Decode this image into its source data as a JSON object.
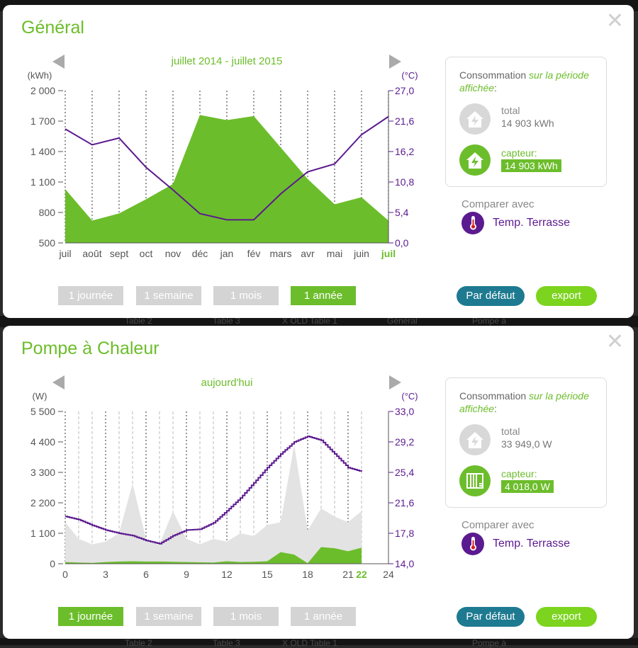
{
  "background_tabs": [
    "Table 2",
    "Table 3",
    "X OLD Table 1",
    "Général",
    "Pompe à"
  ],
  "colors": {
    "green": "#6cbd2b",
    "purple": "#5b1a8f",
    "grey_area": "#e3e3e3",
    "teal": "#1e7a90",
    "lime": "#7cd41e"
  },
  "range_buttons": [
    "1 journée",
    "1 semaine",
    "1 mois",
    "1 année"
  ],
  "panels": [
    {
      "title": "Général",
      "period": "juillet 2014 - juillet 2015",
      "active_range": "1 année",
      "default_label": "Par défaut",
      "export_label": "export",
      "consumption": {
        "title_plain": "Consommation ",
        "title_highlight": "sur la période affichée",
        "title_end": ":",
        "total_label": "total",
        "total_value": "14 903 kWh",
        "total_icon": "house-lightning-icon",
        "capteur_label": "capteur:",
        "capteur_value": "14 903 kWh",
        "capteur_icon": "house-lightning-icon"
      },
      "compare_label": "Comparer avec",
      "compare_item": "Temp. Terrasse",
      "compare_icon": "thermometer-icon",
      "chart_data": {
        "type": "area",
        "left_unit": "(kWh)",
        "right_unit": "(°C)",
        "left_ticks": [
          "2 000",
          "1 700",
          "1 400",
          "1 100",
          "800",
          "500"
        ],
        "right_ticks": [
          "27,0",
          "21,6",
          "16,2",
          "10,8",
          "5,4",
          "0,0"
        ],
        "ylim": [
          500,
          2000
        ],
        "y2lim": [
          0,
          27
        ],
        "x_labels": [
          "juil",
          "août",
          "sept",
          "oct",
          "nov",
          "déc",
          "jan",
          "fév",
          "mars",
          "avr",
          "mai",
          "juin",
          "juil"
        ],
        "highlight_x_label": "juil",
        "series": [
          {
            "name": "capteur",
            "kind": "area",
            "axis": "left",
            "color": "#6cbd2b",
            "x": [
              0,
              1,
              2,
              3,
              4,
              5,
              6,
              7,
              8,
              9,
              10,
              11,
              12
            ],
            "values": [
              1030,
              720,
              790,
              930,
              1080,
              1760,
              1710,
              1750,
              1440,
              1130,
              880,
              950,
              720
            ]
          },
          {
            "name": "Temp. Terrasse",
            "kind": "line",
            "axis": "right",
            "color": "#5b1a8f",
            "step": false,
            "x": [
              0,
              1,
              2,
              3,
              4,
              5,
              6,
              7,
              8,
              9,
              10,
              11,
              12
            ],
            "values": [
              20.2,
              17.4,
              18.6,
              13.4,
              9.4,
              5.2,
              4.1,
              4.1,
              8.7,
              12.6,
              14.0,
              19.2,
              22.4
            ]
          }
        ]
      }
    },
    {
      "title": "Pompe à Chaleur",
      "period": "aujourd'hui",
      "active_range": "1 journée",
      "default_label": "Par défaut",
      "export_label": "export",
      "consumption": {
        "title_plain": "Consommation ",
        "title_highlight": "sur la période affichée",
        "title_end": ":",
        "total_label": "total",
        "total_value": "33 949,0 W",
        "total_icon": "house-lightning-icon",
        "capteur_label": "capteur:",
        "capteur_value": "4 018,0 W",
        "capteur_icon": "heat-pump-icon"
      },
      "compare_label": "Comparer avec",
      "compare_item": "Temp. Terrasse",
      "compare_icon": "thermometer-icon",
      "chart_data": {
        "type": "area",
        "left_unit": "(W)",
        "right_unit": "(°C)",
        "left_ticks": [
          "5 500",
          "4 400",
          "3 300",
          "2 200",
          "1 100",
          "0"
        ],
        "right_ticks": [
          "33,0",
          "29,2",
          "25,4",
          "21,6",
          "17,8",
          "14,0"
        ],
        "ylim": [
          0,
          5500
        ],
        "y2lim": [
          14,
          33
        ],
        "x_labels": [
          "0",
          "3",
          "6",
          "9",
          "12",
          "15",
          "18",
          "21",
          "22",
          "24"
        ],
        "x_label_positions": [
          0,
          3,
          6,
          9,
          12,
          15,
          18,
          21,
          22,
          24
        ],
        "highlight_x_label": "22",
        "series": [
          {
            "name": "total",
            "kind": "area",
            "axis": "left",
            "color": "#e3e3e3",
            "x": [
              0,
              1,
              2,
              3,
              4,
              5,
              6,
              7,
              8,
              9,
              10,
              11,
              12,
              13,
              14,
              15,
              16,
              17,
              18,
              19,
              20,
              21,
              22
            ],
            "values": [
              1500,
              900,
              700,
              800,
              1100,
              2900,
              900,
              700,
              1900,
              900,
              700,
              900,
              800,
              1100,
              1000,
              1400,
              1500,
              4300,
              1200,
              2000,
              1700,
              1500,
              1900
            ]
          },
          {
            "name": "capteur",
            "kind": "area",
            "axis": "left",
            "color": "#6cbd2b",
            "x": [
              0,
              1,
              2,
              3,
              4,
              5,
              6,
              7,
              8,
              9,
              10,
              11,
              12,
              13,
              14,
              15,
              16,
              17,
              18,
              19,
              20,
              21,
              22
            ],
            "values": [
              60,
              40,
              30,
              60,
              80,
              90,
              80,
              80,
              70,
              60,
              50,
              40,
              90,
              60,
              70,
              90,
              420,
              330,
              20,
              600,
              560,
              450,
              580
            ]
          },
          {
            "name": "Temp. Terrasse",
            "kind": "line",
            "axis": "right",
            "color": "#5b1a8f",
            "step": true,
            "x": [
              0,
              1,
              2,
              3,
              4,
              5,
              6,
              7,
              8,
              9,
              10,
              11,
              12,
              13,
              14,
              15,
              16,
              17,
              18,
              19,
              20,
              21,
              22
            ],
            "values": [
              19.9,
              19.5,
              18.8,
              18.2,
              17.8,
              17.5,
              16.9,
              16.5,
              17.5,
              18.2,
              18.3,
              19.1,
              20.6,
              22.2,
              24.1,
              26.0,
              27.7,
              29.2,
              29.9,
              29.4,
              27.7,
              26.0,
              25.5
            ]
          }
        ]
      }
    }
  ]
}
